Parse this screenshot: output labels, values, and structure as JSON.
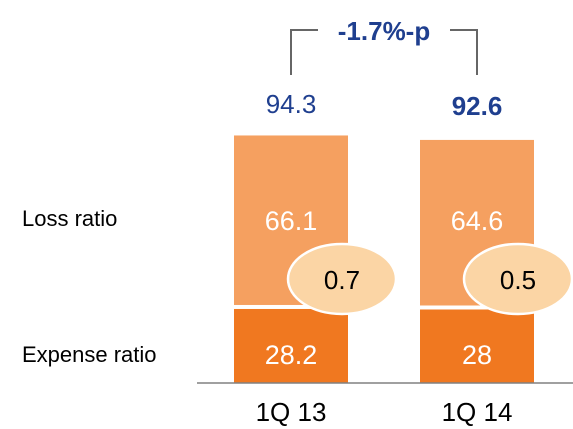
{
  "chart_data": {
    "type": "bar",
    "stacked": true,
    "categories": [
      "1Q 13",
      "1Q 14"
    ],
    "series": [
      {
        "name": "Expense ratio",
        "values": [
          28.2,
          28.0
        ],
        "color": "#f07820"
      },
      {
        "name": "Loss ratio",
        "values": [
          66.1,
          64.6
        ],
        "color": "#f5a060"
      }
    ],
    "totals": [
      "94.3",
      "92.6"
    ],
    "bubbles": [
      "0.7",
      "0.5"
    ],
    "delta_label": "-1.7%-p",
    "title": "",
    "xlabel": "",
    "ylabel": "",
    "ylim": [
      0,
      100
    ],
    "grid": false,
    "colors": {
      "expense": "#f07820",
      "loss": "#f5a060",
      "bubble_fill": "#fbd5a5",
      "bubble_stroke": "#ffffff",
      "total_text": "#1f3f8f",
      "axis": "#808080"
    }
  }
}
